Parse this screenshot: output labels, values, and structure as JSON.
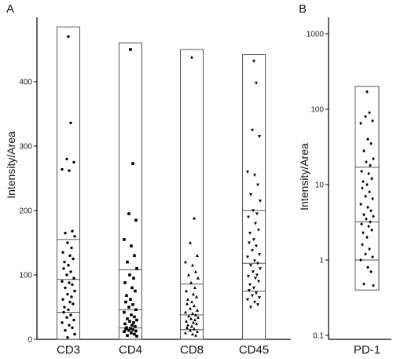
{
  "chart_data": [
    {
      "panel": "A",
      "type": "scatter",
      "ylabel": "Intensity/Area",
      "ylim": [
        0,
        500
      ],
      "y_ticks": [
        "0",
        "100",
        "200",
        "300",
        "400"
      ],
      "categories": [
        "CD3",
        "CD4",
        "CD8",
        "CD45"
      ],
      "marker_shapes": [
        "circle",
        "square",
        "triangle-up",
        "triangle-down"
      ],
      "groups": [
        {
          "category": "CD3",
          "range": [
            0,
            485
          ],
          "quartiles": [
            42,
            93,
            155
          ],
          "points": [
            470,
            336,
            280,
            275,
            264,
            262,
            168,
            165,
            160,
            150,
            142,
            135,
            130,
            125,
            120,
            115,
            110,
            105,
            100,
            95,
            90,
            88,
            85,
            80,
            75,
            70,
            66,
            62,
            58,
            55,
            50,
            46,
            42,
            38,
            34,
            30,
            26,
            22,
            18,
            14,
            8,
            3
          ]
        },
        {
          "category": "CD4",
          "range": [
            0,
            460
          ],
          "quartiles": [
            18,
            46,
            108
          ],
          "points": [
            450,
            273,
            195,
            185,
            155,
            145,
            130,
            120,
            110,
            100,
            95,
            88,
            80,
            75,
            68,
            62,
            58,
            54,
            50,
            46,
            42,
            38,
            35,
            32,
            30,
            28,
            26,
            24,
            22,
            20,
            18,
            17,
            16,
            15,
            14,
            13,
            12,
            10,
            8,
            6,
            5
          ]
        },
        {
          "category": "CD8",
          "range": [
            0,
            450
          ],
          "quartiles": [
            15,
            38,
            86
          ],
          "points": [
            438,
            188,
            150,
            130,
            120,
            115,
            105,
            100,
            95,
            88,
            80,
            75,
            70,
            66,
            62,
            58,
            55,
            52,
            48,
            45,
            42,
            40,
            38,
            36,
            34,
            32,
            30,
            28,
            26,
            24,
            22,
            20,
            18,
            16,
            14,
            12,
            10,
            8,
            6
          ]
        },
        {
          "category": "CD45",
          "range": [
            0,
            442
          ],
          "quartiles": [
            75,
            118,
            200
          ],
          "points": [
            432,
            398,
            325,
            315,
            260,
            255,
            240,
            225,
            215,
            200,
            195,
            190,
            180,
            170,
            165,
            155,
            150,
            145,
            138,
            132,
            128,
            122,
            118,
            115,
            110,
            105,
            100,
            98,
            95,
            90,
            85,
            80,
            76,
            72,
            68,
            65,
            62,
            58,
            54,
            50
          ]
        }
      ]
    },
    {
      "panel": "B",
      "type": "scatter",
      "ylabel": "Intensity/Area",
      "y_scale": "log",
      "ylim": [
        0.1,
        1000
      ],
      "y_ticks": [
        "0.1",
        "1",
        "10",
        "100",
        "1000"
      ],
      "categories": [
        "PD-1"
      ],
      "marker_shapes": [
        "diamond"
      ],
      "groups": [
        {
          "category": "PD-1",
          "range": [
            0.4,
            200
          ],
          "quartiles": [
            1.0,
            3.2,
            17
          ],
          "points": [
            170,
            90,
            80,
            70,
            65,
            40,
            35,
            28,
            22,
            20,
            18,
            15,
            14,
            12,
            11,
            10,
            9,
            8,
            7,
            6.5,
            5.5,
            5,
            4.5,
            4,
            3.8,
            3.5,
            3.2,
            3,
            2.8,
            2.5,
            2.3,
            2,
            1.6,
            1.4,
            1.2,
            1.1,
            1,
            0.8,
            0.7,
            0.48,
            0.46
          ]
        }
      ]
    }
  ],
  "colors": {
    "axis": "#000000",
    "box": "#555555",
    "marker": "#000000"
  }
}
